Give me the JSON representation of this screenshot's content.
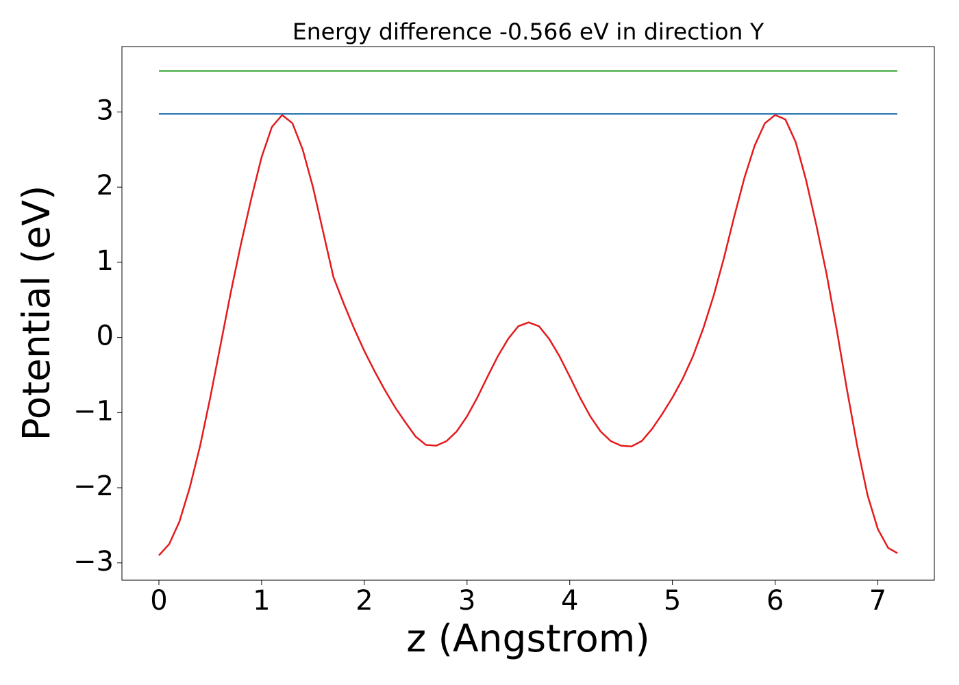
{
  "chart_data": {
    "type": "line",
    "title": "Energy difference -0.566 eV in direction Y",
    "x_label": "z (Angstrom)",
    "y_label": "Potential (eV)",
    "xlim": [
      -0.36,
      7.55
    ],
    "ylim": [
      -3.23,
      3.87
    ],
    "xticks": [
      0,
      1,
      2,
      3,
      4,
      5,
      6,
      7
    ],
    "yticks": [
      {
        "value": -3,
        "label": "−3"
      },
      {
        "value": -2,
        "label": "−2"
      },
      {
        "value": -1,
        "label": "−1"
      },
      0,
      1,
      2,
      3
    ],
    "grid": false,
    "series": [
      {
        "color": "#e41a1c",
        "x": [
          0,
          0.1,
          0.2,
          0.3,
          0.4,
          0.5,
          0.6,
          0.7,
          0.8,
          0.9,
          1.0,
          1.1,
          1.2,
          1.3,
          1.4,
          1.5,
          1.6,
          1.7,
          1.8,
          1.9,
          2.0,
          2.1,
          2.2,
          2.3,
          2.4,
          2.5,
          2.6,
          2.7,
          2.8,
          2.9,
          3.0,
          3.1,
          3.2,
          3.3,
          3.4,
          3.5,
          3.6,
          3.7,
          3.8,
          3.9,
          4.0,
          4.1,
          4.2,
          4.3,
          4.4,
          4.5,
          4.6,
          4.7,
          4.8,
          4.9,
          5.0,
          5.1,
          5.2,
          5.3,
          5.4,
          5.5,
          5.6,
          5.7,
          5.8,
          5.9,
          6.0,
          6.1,
          6.2,
          6.3,
          6.4,
          6.5,
          6.6,
          6.7,
          6.8,
          6.9,
          7.0,
          7.1,
          7.19
        ],
        "values": [
          -2.9,
          -2.75,
          -2.45,
          -2.0,
          -1.45,
          -0.8,
          -0.1,
          0.6,
          1.25,
          1.85,
          2.4,
          2.8,
          2.96,
          2.85,
          2.5,
          2.0,
          1.4,
          0.8,
          0.45,
          0.12,
          -0.18,
          -0.45,
          -0.7,
          -0.93,
          -1.13,
          -1.32,
          -1.43,
          -1.44,
          -1.38,
          -1.25,
          -1.05,
          -0.8,
          -0.52,
          -0.25,
          -0.02,
          0.15,
          0.2,
          0.15,
          -0.02,
          -0.25,
          -0.52,
          -0.8,
          -1.05,
          -1.25,
          -1.38,
          -1.44,
          -1.45,
          -1.38,
          -1.22,
          -1.02,
          -0.8,
          -0.55,
          -0.25,
          0.12,
          0.55,
          1.05,
          1.6,
          2.12,
          2.55,
          2.85,
          2.96,
          2.9,
          2.6,
          2.1,
          1.5,
          0.85,
          0.1,
          -0.7,
          -1.45,
          -2.1,
          -2.55,
          -2.8,
          -2.87
        ]
      },
      {
        "color": "#377eb8",
        "x": [
          0,
          7.19
        ],
        "values": [
          2.974,
          2.974
        ]
      },
      {
        "color": "#4daf4a",
        "x": [
          0,
          7.19
        ],
        "values": [
          3.547,
          3.547
        ]
      }
    ]
  }
}
